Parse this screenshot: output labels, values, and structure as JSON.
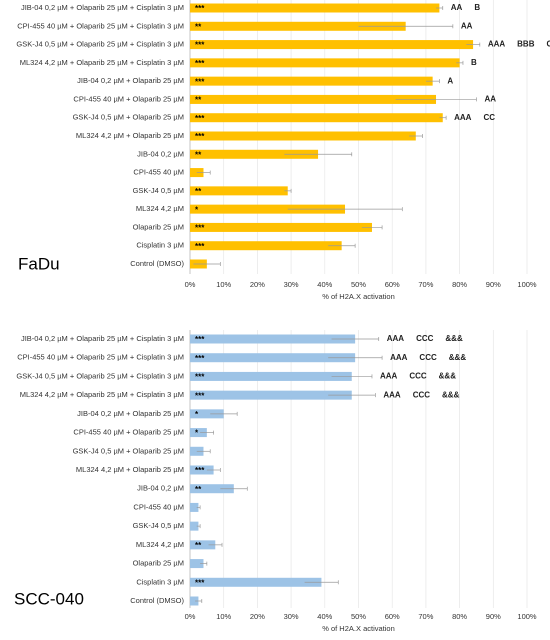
{
  "chart_data": [
    {
      "type": "bar",
      "orientation": "horizontal",
      "panel_label": "FaDu",
      "xlabel": "% of H2A.X activation",
      "color": "#ffc000",
      "grid": true,
      "categories": [
        "JIB-04 0,2 µM + Olaparib 25 µM + Cisplatin 3 µM",
        "CPI-455 40 µM + Olaparib 25 µM + Cisplatin 3 µM",
        "GSK-J4 0,5 µM + Olaparib 25 µM + Cisplatin 3 µM",
        "ML324 4,2 µM + Olaparib 25 µM + Cisplatin 3 µM",
        "JIB-04 0,2 µM + Olaparib 25 µM",
        "CPI-455 40 µM + Olaparib 25 µM",
        "GSK-J4 0,5 µM + Olaparib 25 µM",
        "ML324 4,2 µM + Olaparib 25 µM",
        "JIB-04 0,2 µM",
        "CPI-455 40 µM",
        "GSK-J4 0,5 µM",
        "ML324 4,2 µM",
        "Olaparib 25 µM",
        "Cisplatin 3 µM",
        "Control (DMSO)"
      ],
      "values": [
        74,
        64,
        84,
        80,
        72,
        73,
        75,
        67,
        38,
        4,
        29,
        46,
        54,
        45,
        5
      ],
      "errors": [
        1,
        14,
        2,
        1,
        2,
        12,
        1,
        2,
        10,
        2,
        1,
        17,
        3,
        4,
        4
      ],
      "star_labels": [
        "***",
        "**",
        "***",
        "***",
        "***",
        "**",
        "***",
        "***",
        "**",
        null,
        "**",
        "*",
        "***",
        "***",
        null
      ],
      "annotations": [
        [
          "AA",
          "B"
        ],
        [
          "AA"
        ],
        [
          "AAA",
          "BBB",
          "CCC"
        ],
        [
          "B"
        ],
        [
          "A"
        ],
        [
          "AA"
        ],
        [
          "AAA",
          "CC"
        ],
        [],
        [],
        [],
        [],
        [],
        [],
        [],
        []
      ],
      "xlim": [
        0,
        100
      ],
      "xticks": [
        {
          "value": 0,
          "label": "0%"
        },
        {
          "value": 10,
          "label": "10%"
        },
        {
          "value": 20,
          "label": "20%"
        },
        {
          "value": 30,
          "label": "30%"
        },
        {
          "value": 40,
          "label": "40%"
        },
        {
          "value": 50,
          "label": "50%"
        },
        {
          "value": 60,
          "label": "60%"
        },
        {
          "value": 70,
          "label": "70%"
        },
        {
          "value": 80,
          "label": "80%"
        },
        {
          "value": 90,
          "label": "90%"
        },
        {
          "value": 100,
          "label": "100%"
        }
      ]
    },
    {
      "type": "bar",
      "orientation": "horizontal",
      "panel_label": "SCC-040",
      "xlabel": "% of H2A.X activation",
      "color": "#9dc3e6",
      "grid": true,
      "categories": [
        "JIB-04 0,2 µM + Olaparib 25 µM + Cisplatin 3 µM",
        "CPI-455 40 µM + Olaparib 25 µM + Cisplatin 3 µM",
        "GSK-J4 0,5 µM + Olaparib 25 µM + Cisplatin 3 µM",
        "ML324 4,2 µM + Olaparib 25 µM + Cisplatin 3 µM",
        "JIB-04 0,2 µM + Olaparib 25 µM",
        "CPI-455 40 µM + Olaparib 25 µM",
        "GSK-J4 0,5 µM + Olaparib 25 µM",
        "ML324 4,2 µM + Olaparib 25 µM",
        "JIB-04 0,2 µM",
        "CPI-455 40 µM",
        "GSK-J4 0,5 µM",
        "ML324 4,2 µM",
        "Olaparib 25 µM",
        "Cisplatin 3 µM",
        "Control (DMSO)"
      ],
      "values": [
        49,
        49,
        48,
        48,
        10,
        5,
        4,
        7,
        13,
        2.5,
        2.5,
        7.5,
        4,
        39,
        2.5
      ],
      "errors": [
        7,
        8,
        6,
        7,
        4,
        2,
        2,
        2,
        4,
        0.5,
        0.5,
        2,
        1,
        5,
        1
      ],
      "star_labels": [
        "***",
        "***",
        "***",
        "***",
        "*",
        "*",
        null,
        "***",
        "**",
        null,
        null,
        "**",
        null,
        "***",
        null
      ],
      "annotations": [
        [
          "AAA",
          "CCC",
          "&&&"
        ],
        [
          "AAA",
          "CCC",
          "&&&"
        ],
        [
          "AAA",
          "CCC",
          "&&&"
        ],
        [
          "AAA",
          "CCC",
          "&&&"
        ],
        [],
        [],
        [],
        [],
        [],
        [],
        [],
        [],
        [],
        [],
        []
      ],
      "xlim": [
        0,
        100
      ],
      "xticks": [
        {
          "value": 0,
          "label": "0%"
        },
        {
          "value": 10,
          "label": "10%"
        },
        {
          "value": 20,
          "label": "20%"
        },
        {
          "value": 30,
          "label": "30%"
        },
        {
          "value": 40,
          "label": "40%"
        },
        {
          "value": 50,
          "label": "50%"
        },
        {
          "value": 60,
          "label": "60%"
        },
        {
          "value": 70,
          "label": "70%"
        },
        {
          "value": 80,
          "label": "80%"
        },
        {
          "value": 90,
          "label": "90%"
        },
        {
          "value": 100,
          "label": "100%"
        }
      ]
    }
  ]
}
